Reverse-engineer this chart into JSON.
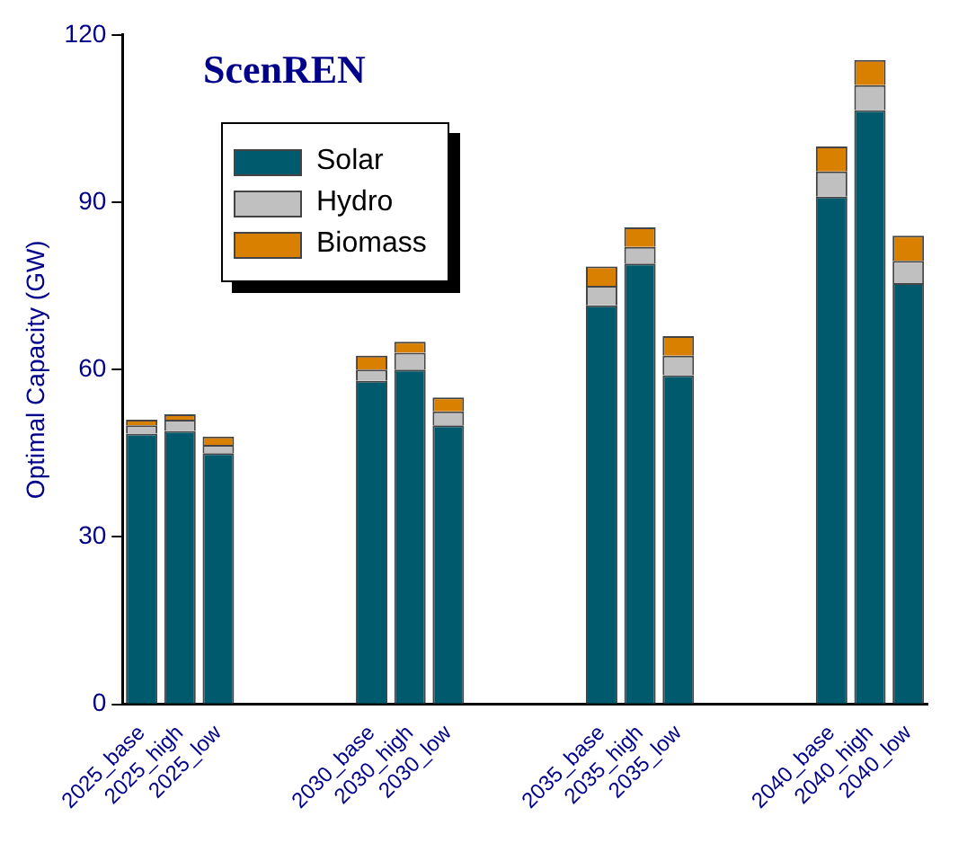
{
  "chart_data": {
    "type": "bar",
    "title": "ScenREN",
    "ylabel": "Optimal Capacity (GW)",
    "categories": [
      "2025_base",
      "2025_high",
      "2025_low",
      null,
      null,
      null,
      "2030_base",
      "2030_high",
      "2030_low",
      null,
      null,
      null,
      "2035_base",
      "2035_high",
      "2035_low",
      null,
      null,
      null,
      "2040_base",
      "2040_high",
      "2040_low"
    ],
    "series": [
      {
        "name": "Solar",
        "color": "#005a6e",
        "values": [
          48.5,
          49,
          45,
          null,
          null,
          null,
          58,
          60,
          50,
          null,
          null,
          null,
          71.5,
          79,
          59,
          null,
          null,
          null,
          91,
          106.5,
          75.5
        ]
      },
      {
        "name": "Hydro",
        "color": "#c0c0c0",
        "values": [
          1.5,
          2,
          1.5,
          null,
          null,
          null,
          2,
          3,
          2.5,
          null,
          null,
          null,
          3.5,
          3,
          3.5,
          null,
          null,
          null,
          4.5,
          4.5,
          4
        ]
      },
      {
        "name": "Biomass",
        "color": "#d98000",
        "values": [
          1,
          1,
          1.5,
          null,
          null,
          null,
          2.5,
          2,
          2.5,
          null,
          null,
          null,
          3.5,
          3.5,
          3.5,
          null,
          null,
          null,
          4.5,
          4.5,
          4.5
        ]
      }
    ],
    "stacked": true,
    "ylim": [
      0,
      120
    ],
    "yticks": [
      0,
      30,
      60,
      90,
      120
    ],
    "grid": false,
    "legend": "top left"
  }
}
